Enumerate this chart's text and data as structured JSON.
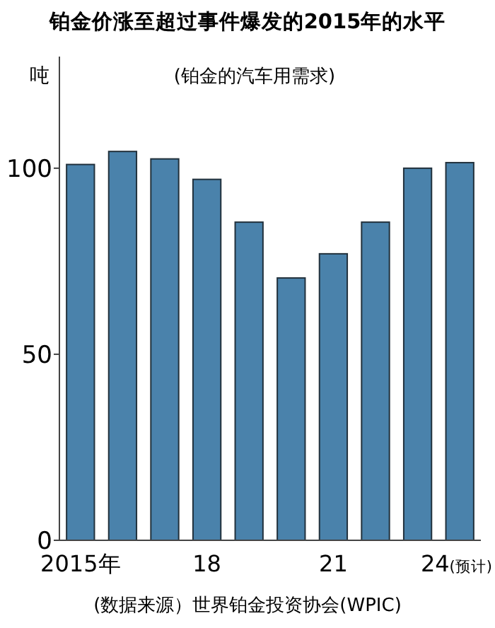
{
  "chart_data": {
    "type": "bar",
    "title": "铂金价涨至超过事件爆发的2015年的水平",
    "subtitle": "(铂金的汽车用需求)",
    "ylabel": "吨",
    "categories": [
      "2015年",
      null,
      null,
      "18",
      null,
      null,
      "21",
      null,
      null,
      "24(预计)"
    ],
    "values": [
      101,
      104.5,
      102.5,
      97,
      85.5,
      70.5,
      77,
      85.5,
      100,
      101.5
    ],
    "color": "#4a82ab",
    "ylim": [
      0,
      130
    ],
    "yticks": [
      0,
      50,
      100
    ],
    "grid": false,
    "annotations": [
      "(数据来源）世界铂金投资协会(WPIC)"
    ]
  }
}
